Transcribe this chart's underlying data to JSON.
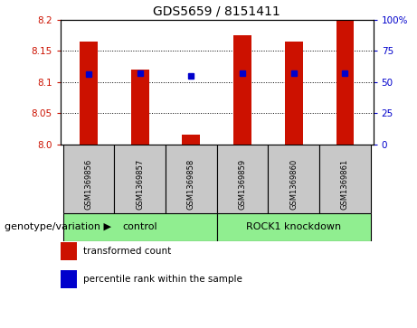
{
  "title": "GDS5659 / 8151411",
  "samples": [
    "GSM1369856",
    "GSM1369857",
    "GSM1369858",
    "GSM1369859",
    "GSM1369860",
    "GSM1369861"
  ],
  "transformed_counts": [
    8.165,
    8.12,
    8.015,
    8.175,
    8.165,
    8.2
  ],
  "percentile_ranks": [
    56,
    57,
    55,
    57,
    57,
    57
  ],
  "ylim_left": [
    8.0,
    8.2
  ],
  "ylim_right": [
    0,
    100
  ],
  "yticks_left": [
    8.0,
    8.05,
    8.1,
    8.15,
    8.2
  ],
  "yticks_right": [
    0,
    25,
    50,
    75,
    100
  ],
  "ytick_labels_right": [
    "0",
    "25",
    "50",
    "75",
    "100%"
  ],
  "grid_values": [
    8.05,
    8.1,
    8.15
  ],
  "bar_color": "#cc1100",
  "dot_color": "#0000cc",
  "control_label": "control",
  "knockdown_label": "ROCK1 knockdown",
  "group_color": "#90ee90",
  "group_label_prefix": "genotype/variation",
  "legend_items": [
    {
      "label": "transformed count",
      "color": "#cc1100"
    },
    {
      "label": "percentile rank within the sample",
      "color": "#0000cc"
    }
  ],
  "sample_bg_color": "#c8c8c8",
  "left_tick_color": "#cc1100",
  "right_tick_color": "#0000cc",
  "bar_width": 0.35
}
